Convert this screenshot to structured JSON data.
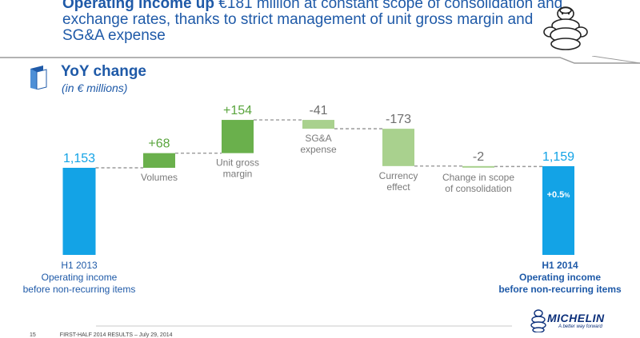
{
  "headline": {
    "bold": "Operating income up",
    "rest": " €181 million at constant scope of consolidation and exchange rates, thanks to strict management of unit gross margin and SG&A expense"
  },
  "section": {
    "title": "YoY change",
    "subtitle": "(in € millions)"
  },
  "footer": {
    "page": "15",
    "text": "FIRST-HALF 2014 RESULTS – July 29, 2014"
  },
  "logo": {
    "word": "MICHELIN",
    "tagline": "A better way forward"
  },
  "colors": {
    "total": "#13a3e6",
    "increase": "#6ab04c",
    "decrease": "#a9d18e",
    "text_total": "#13a3e6",
    "text_increase": "#5aa53e",
    "text_decrease": "#6e6e6e",
    "headline": "#1f5aa8"
  },
  "chart_data": {
    "type": "bar",
    "subtype": "waterfall",
    "unit": "€ millions",
    "bars": [
      {
        "label": "H1 2013\nOperating income\nbefore non-recurring items",
        "value_label": "1,153",
        "value": 1153,
        "kind": "total"
      },
      {
        "label": "Volumes",
        "value_label": "+68",
        "value": 68,
        "kind": "increase"
      },
      {
        "label": "Unit gross\nmargin",
        "value_label": "+154",
        "value": 154,
        "kind": "increase"
      },
      {
        "label": "SG&A\nexpense",
        "value_label": "-41",
        "value": -41,
        "kind": "decrease"
      },
      {
        "label": "Currency\neffect",
        "value_label": "-173",
        "value": -173,
        "kind": "decrease"
      },
      {
        "label": "Change in scope\nof consolidation",
        "value_label": "-2",
        "value": -2,
        "kind": "decrease"
      },
      {
        "label": "H1 2014\nOperating income\nbefore non-recurring items",
        "value_label": "1,159",
        "value": 1159,
        "kind": "total",
        "badge": "+0.5",
        "badge_suffix": "%"
      }
    ]
  }
}
